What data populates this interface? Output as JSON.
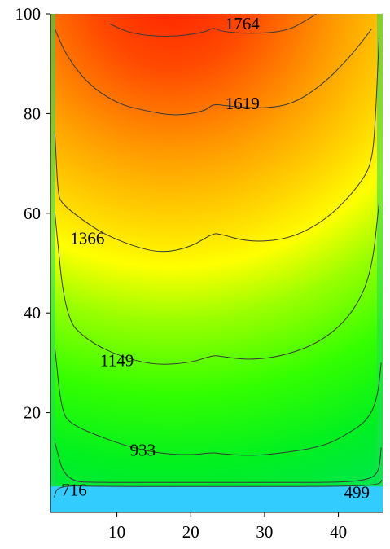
{
  "chart_data": {
    "type": "heatmap",
    "subtype": "filled-contour",
    "title": "",
    "xlabel": "",
    "ylabel": "",
    "xlim": [
      1,
      46
    ],
    "ylim": [
      0,
      100
    ],
    "x_ticks": [
      10,
      20,
      30,
      40
    ],
    "y_ticks": [
      20,
      40,
      60,
      80,
      100
    ],
    "x_tick_labels": [
      "10",
      "20",
      "30",
      "40"
    ],
    "y_tick_labels": [
      "20",
      "40",
      "60",
      "80",
      "100"
    ],
    "grid": false,
    "legend": "none",
    "colormap": [
      "#33ccff",
      "#00ee33",
      "#66ff00",
      "#ffff00",
      "#ffaa00",
      "#ff2200"
    ],
    "contour_levels": [
      {
        "value": 499,
        "label": "499",
        "label_at": {
          "x": 42.5,
          "y": 4
        }
      },
      {
        "value": 716,
        "label": "716",
        "label_at": {
          "x": 4.2,
          "y": 4.5
        }
      },
      {
        "value": 933,
        "label": "933",
        "label_at": {
          "x": 13.5,
          "y": 12.5
        }
      },
      {
        "value": 1149,
        "label": "1149",
        "label_at": {
          "x": 10,
          "y": 30.5
        }
      },
      {
        "value": 1366,
        "label": "1366",
        "label_at": {
          "x": 6,
          "y": 55
        }
      },
      {
        "value": 1619,
        "label": "1619",
        "label_at": {
          "x": 27,
          "y": 82
        }
      },
      {
        "value": 1764,
        "label": "1764",
        "label_at": {
          "x": 27,
          "y": 98
        }
      }
    ],
    "contour_lines": [
      {
        "value": 1764,
        "points": [
          [
            9,
            98
          ],
          [
            12,
            96
          ],
          [
            17,
            95.3
          ],
          [
            22,
            96.3
          ],
          [
            23,
            97.3
          ],
          [
            24,
            96.5
          ],
          [
            28,
            96
          ],
          [
            33,
            96.5
          ],
          [
            36,
            99
          ],
          [
            37,
            100
          ]
        ]
      },
      {
        "value": 1619,
        "points": [
          [
            1.6,
            97
          ],
          [
            3,
            92
          ],
          [
            6,
            86
          ],
          [
            10,
            82
          ],
          [
            14,
            80.5
          ],
          [
            18,
            79.5
          ],
          [
            22,
            80.5
          ],
          [
            23,
            82
          ],
          [
            25,
            81.5
          ],
          [
            30,
            81
          ],
          [
            34,
            82
          ],
          [
            38,
            86
          ],
          [
            41,
            90.5
          ],
          [
            43,
            94
          ],
          [
            44.5,
            97
          ]
        ]
      },
      {
        "value": 1366,
        "points": [
          [
            1.6,
            76
          ],
          [
            2,
            64
          ],
          [
            2.5,
            62
          ],
          [
            5,
            59
          ],
          [
            8,
            56
          ],
          [
            12,
            53.5
          ],
          [
            16,
            52
          ],
          [
            20,
            53.2
          ],
          [
            23,
            56
          ],
          [
            24,
            55.8
          ],
          [
            28,
            54.2
          ],
          [
            33,
            54.8
          ],
          [
            37,
            57.5
          ],
          [
            40,
            61
          ],
          [
            43,
            66
          ],
          [
            44.5,
            70
          ],
          [
            45,
            78
          ],
          [
            45.5,
            95
          ]
        ]
      },
      {
        "value": 1149,
        "points": [
          [
            1.6,
            60
          ],
          [
            3,
            39
          ],
          [
            6,
            34.5
          ],
          [
            10,
            31.5
          ],
          [
            15,
            29.5
          ],
          [
            20,
            30
          ],
          [
            23,
            31.5
          ],
          [
            24,
            31.3
          ],
          [
            28,
            30.5
          ],
          [
            33,
            31.5
          ],
          [
            38,
            34.5
          ],
          [
            42,
            40
          ],
          [
            44.5,
            48
          ],
          [
            45.5,
            62
          ]
        ]
      },
      {
        "value": 933,
        "points": [
          [
            1.6,
            33
          ],
          [
            2.5,
            20
          ],
          [
            4,
            17.5
          ],
          [
            8,
            15
          ],
          [
            12,
            13
          ],
          [
            16,
            11.8
          ],
          [
            20,
            11.5
          ],
          [
            23,
            12
          ],
          [
            24,
            11.8
          ],
          [
            28,
            11.3
          ],
          [
            33,
            12
          ],
          [
            38,
            13.3
          ],
          [
            41,
            15.5
          ],
          [
            44,
            18.5
          ],
          [
            45.3,
            23
          ],
          [
            45.8,
            30
          ]
        ]
      },
      {
        "value": 716,
        "points": [
          [
            1.6,
            14
          ],
          [
            3,
            6.2
          ],
          [
            8,
            6
          ],
          [
            16,
            6
          ],
          [
            24,
            6
          ],
          [
            32,
            6
          ],
          [
            40,
            6
          ],
          [
            44,
            6.5
          ],
          [
            45.5,
            8
          ],
          [
            45.8,
            13
          ]
        ]
      },
      {
        "value": 499,
        "points": [
          [
            1.5,
            3
          ],
          [
            2,
            5.4
          ],
          [
            8,
            5.2
          ],
          [
            20,
            5.2
          ],
          [
            30,
            5.2
          ],
          [
            40,
            5.2
          ],
          [
            45.5,
            5.5
          ],
          [
            45.9,
            6.5
          ]
        ]
      }
    ]
  }
}
